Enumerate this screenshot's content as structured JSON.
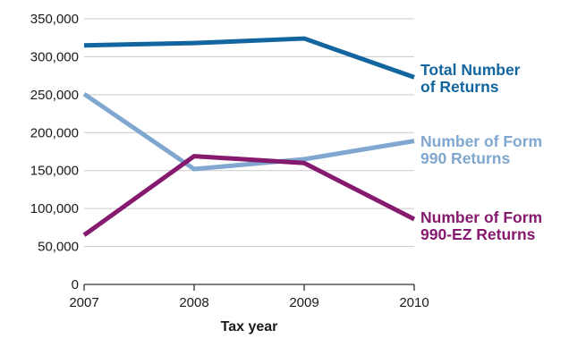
{
  "chart_data": {
    "type": "line",
    "title": "",
    "xlabel": "Tax year",
    "ylabel": "",
    "x": [
      2007,
      2008,
      2009,
      2010
    ],
    "ylim": [
      0,
      350000
    ],
    "yticks": [
      0,
      50000,
      100000,
      150000,
      200000,
      250000,
      300000,
      350000
    ],
    "ytick_labels": [
      "0",
      "50,000",
      "100,000",
      "150,000",
      "200,000",
      "250,000",
      "300,000",
      "350,000"
    ],
    "grid": "horizontal",
    "legend": "direct labels at right end of lines",
    "series": [
      {
        "name": "Total Number of Returns",
        "label_lines": [
          "Total Number",
          "of Returns"
        ],
        "color": "#12659e",
        "values": [
          315000,
          318000,
          324000,
          273000
        ]
      },
      {
        "name": "Number of Form 990 Returns",
        "label_lines": [
          "Number of Form",
          "990 Returns"
        ],
        "color": "#7fa7cf",
        "values": [
          251000,
          152000,
          165000,
          189000
        ]
      },
      {
        "name": "Number of Form 990-EZ Returns",
        "label_lines": [
          "Number of Form",
          "990-EZ Returns"
        ],
        "color": "#851a6f",
        "values": [
          65000,
          169000,
          160000,
          86000
        ]
      }
    ]
  }
}
